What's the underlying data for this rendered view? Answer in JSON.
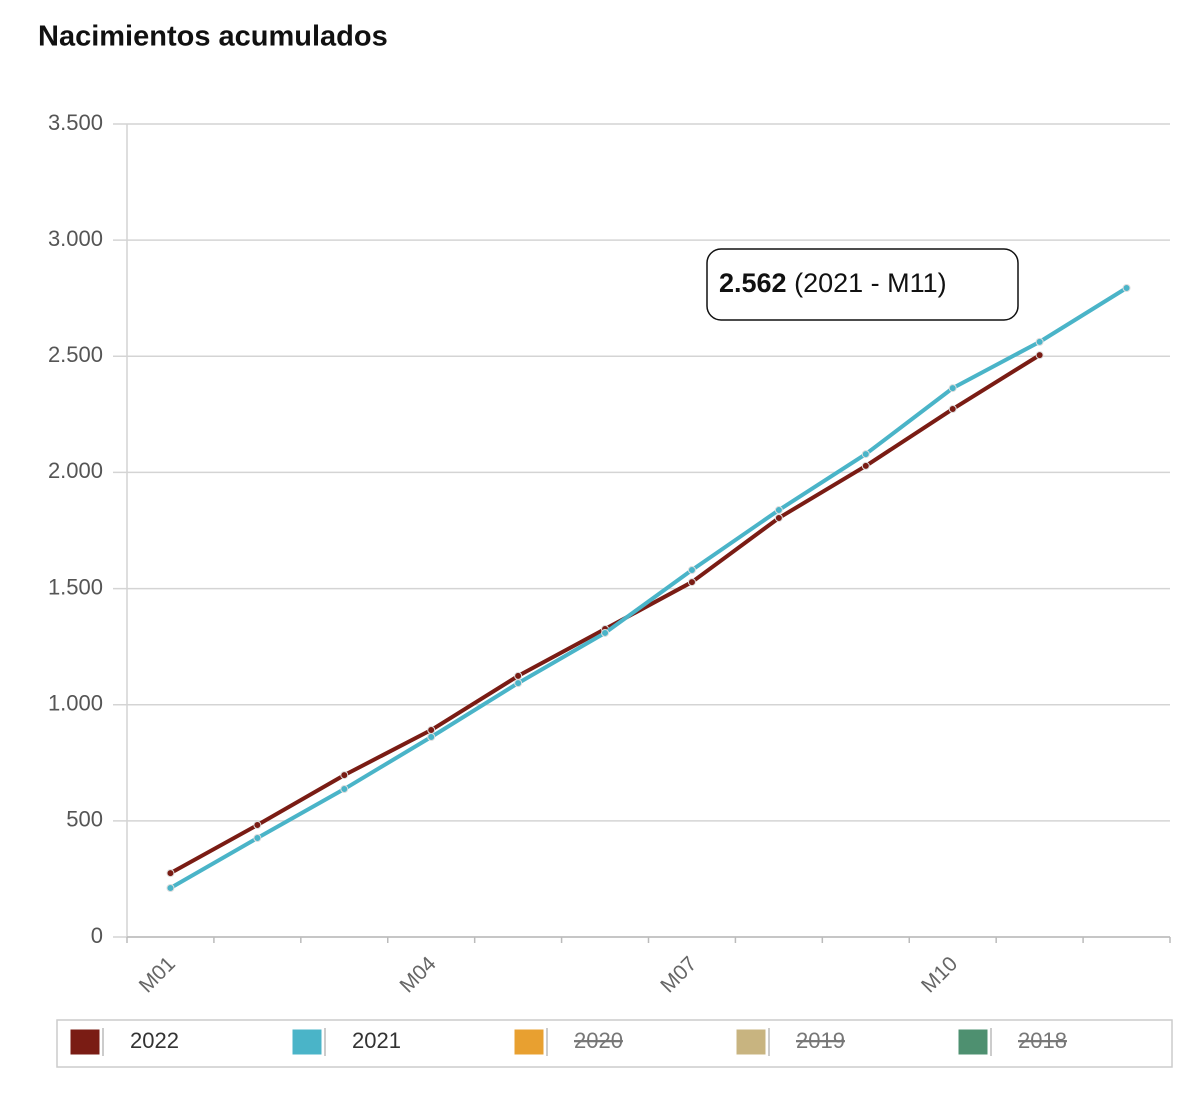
{
  "chart_data": {
    "type": "line",
    "title": "Nacimientos acumulados",
    "categories": [
      "M01",
      null,
      null,
      "M04",
      null,
      null,
      "M07",
      null,
      null,
      "M10",
      null,
      null
    ],
    "series": [
      {
        "name": "2022",
        "color": "#7a1c14",
        "values": [
          275,
          482,
          697,
          891,
          1124,
          1326,
          1528,
          1804,
          2028,
          2273,
          2505,
          null
        ]
      },
      {
        "name": "2021",
        "color": "#4ab4c8",
        "values": [
          211,
          426,
          637,
          861,
          1093,
          1309,
          1580,
          1838,
          2079,
          2363,
          2562,
          2794
        ]
      },
      {
        "name": "2020",
        "color": "#e8a030",
        "hidden": true
      },
      {
        "name": "2019",
        "color": "#c8b480",
        "hidden": true
      },
      {
        "name": "2018",
        "color": "#4e9070",
        "hidden": true
      }
    ],
    "ylim": [
      0,
      3500
    ],
    "yticks": [
      0,
      500,
      {
        "value": 1000,
        "label": "1.000"
      },
      {
        "value": 1500,
        "label": "1.500"
      },
      {
        "value": 2000,
        "label": "2.000"
      },
      {
        "value": 2500,
        "label": "2.500"
      },
      {
        "value": 3000,
        "label": "3.000"
      },
      {
        "value": 3500,
        "label": "3.500"
      }
    ],
    "grid": true,
    "legend": "bottom",
    "tooltip": {
      "value_label": "2.562",
      "text": "(2021 - M11)"
    }
  }
}
